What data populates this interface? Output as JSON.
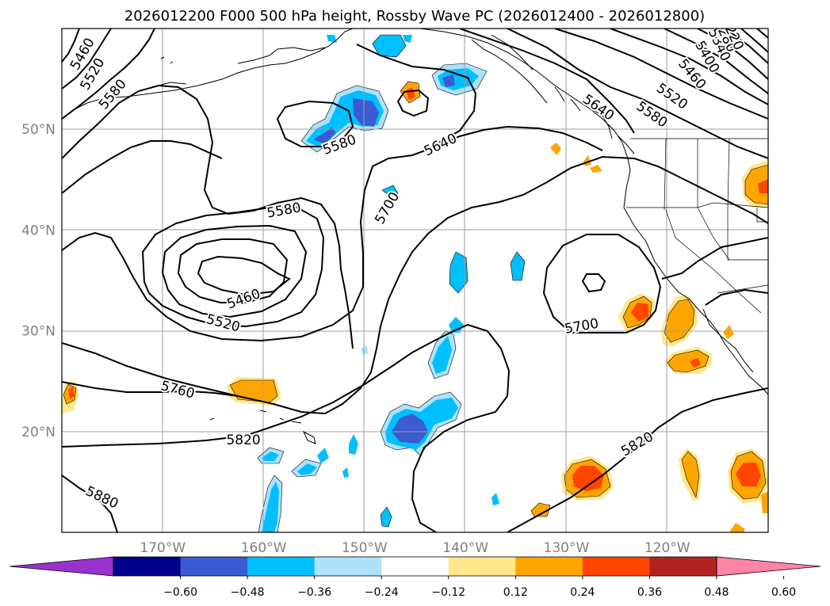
{
  "chart_data": {
    "type": "contour-map",
    "title": "2026012200 F000 500 hPa height, Rossby Wave PC (2026012400 - 2026012800)",
    "lon_range": [
      -180,
      -110
    ],
    "lat_range": [
      10,
      60
    ],
    "lon_ticks": [
      {
        "value": -170,
        "label": "170°W"
      },
      {
        "value": -160,
        "label": "160°W"
      },
      {
        "value": -150,
        "label": "150°W"
      },
      {
        "value": -140,
        "label": "140°W"
      },
      {
        "value": -130,
        "label": "130°W"
      },
      {
        "value": -120,
        "label": "120°W"
      }
    ],
    "lat_ticks": [
      {
        "value": 50,
        "label": "50°N"
      },
      {
        "value": 40,
        "label": "40°N"
      },
      {
        "value": 30,
        "label": "30°N"
      },
      {
        "value": 20,
        "label": "20°N"
      }
    ],
    "grid": true,
    "contour_interval": 60,
    "contour_labels": [
      {
        "value": "5460",
        "lon": -178,
        "lat": 57.5,
        "rotate": -60
      },
      {
        "value": "5520",
        "lon": -177,
        "lat": 55.5,
        "rotate": -60
      },
      {
        "value": "5580",
        "lon": -175,
        "lat": 53.5,
        "rotate": -50
      },
      {
        "value": "5580",
        "lon": -152.5,
        "lat": 48.5,
        "rotate": -20
      },
      {
        "value": "5640",
        "lon": -142.5,
        "lat": 48.5,
        "rotate": -25
      },
      {
        "value": "5640",
        "lon": -126.8,
        "lat": 52.2,
        "rotate": 35
      },
      {
        "value": "5580",
        "lon": -121.5,
        "lat": 51.5,
        "rotate": 35
      },
      {
        "value": "5520",
        "lon": -119.5,
        "lat": 53.3,
        "rotate": 35
      },
      {
        "value": "5460",
        "lon": -117.5,
        "lat": 55.5,
        "rotate": 50
      },
      {
        "value": "5400",
        "lon": -116,
        "lat": 57.2,
        "rotate": 60
      },
      {
        "value": "5340",
        "lon": -114.8,
        "lat": 58.4,
        "rotate": 65
      },
      {
        "value": "5280",
        "lon": -114.2,
        "lat": 59.3,
        "rotate": 65
      },
      {
        "value": "5220",
        "lon": -113.5,
        "lat": 59.5,
        "rotate": 65
      },
      {
        "value": "5580",
        "lon": -158,
        "lat": 42,
        "rotate": -10
      },
      {
        "value": "5700",
        "lon": -147.8,
        "lat": 42.2,
        "rotate": -60
      },
      {
        "value": "5460",
        "lon": -162,
        "lat": 33.2,
        "rotate": -20
      },
      {
        "value": "5520",
        "lon": -164,
        "lat": 30.8,
        "rotate": 15
      },
      {
        "value": "5700",
        "lon": -128.5,
        "lat": 30.5,
        "rotate": -10
      },
      {
        "value": "5760",
        "lon": -168.5,
        "lat": 24.2,
        "rotate": 15
      },
      {
        "value": "5820",
        "lon": -162,
        "lat": 19.2,
        "rotate": 0
      },
      {
        "value": "5820",
        "lon": -123,
        "lat": 18.8,
        "rotate": -30
      },
      {
        "value": "5880",
        "lon": -176,
        "lat": 13.5,
        "rotate": 25
      }
    ],
    "colorbar": {
      "tick_labels": [
        "−0.60",
        "−0.48",
        "−0.36",
        "−0.24",
        "−0.12",
        "0.12",
        "0.24",
        "0.36",
        "0.48",
        "0.60"
      ],
      "colors": [
        "#9932cc",
        "#00008b",
        "#3a5bd1",
        "#00bfff",
        "#aee2fb",
        "#ffffff",
        "#ffe78c",
        "#ffa500",
        "#ff4500",
        "#b22222",
        "#ff85a6"
      ],
      "extend": "both"
    }
  }
}
